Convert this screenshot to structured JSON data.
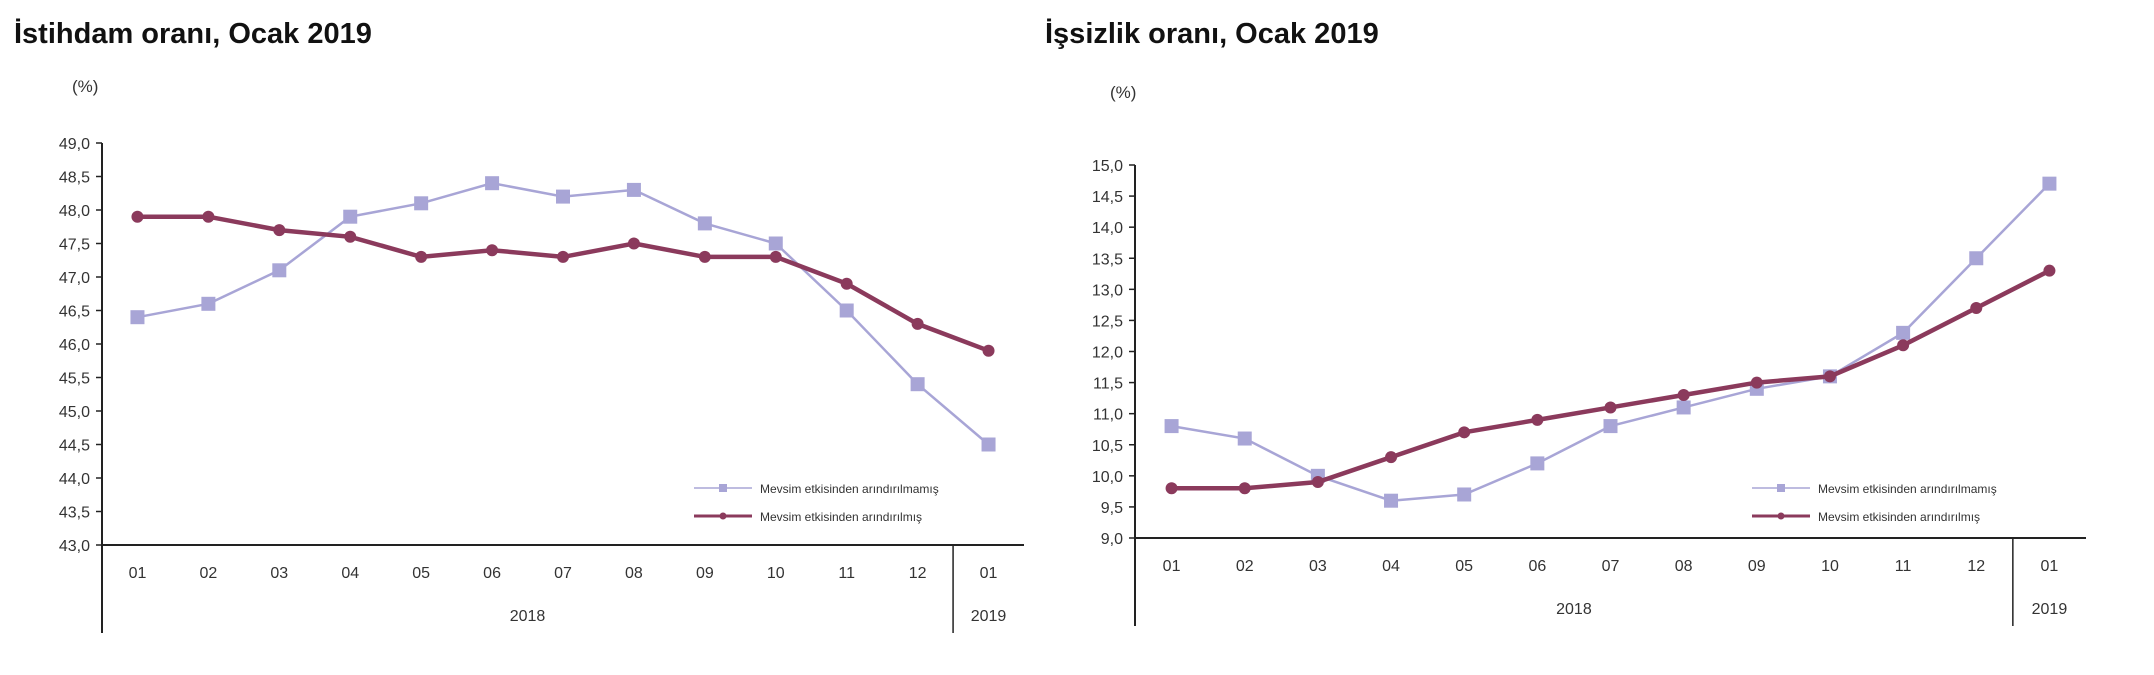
{
  "colors": {
    "seasonal_adjusted": "#8b3a5c",
    "not_adjusted": "#a8a5d6",
    "axis": "#222222"
  },
  "chart_data": [
    {
      "type": "line",
      "title": "İstihdam oranı, Ocak 2019",
      "ylabel": "(%)",
      "ylim": [
        43.0,
        49.0
      ],
      "y_ticks": [
        "49,0",
        "48,5",
        "48,0",
        "47,5",
        "47,0",
        "46,5",
        "46,0",
        "45,5",
        "45,0",
        "44,5",
        "44,0",
        "43,5",
        "43,0"
      ],
      "x": [
        "01",
        "02",
        "03",
        "04",
        "05",
        "06",
        "07",
        "08",
        "09",
        "10",
        "11",
        "12",
        "01"
      ],
      "year_labels": [
        "2018",
        "2019"
      ],
      "grid": false,
      "legend_position": "bottom-right",
      "series": [
        {
          "name": "Mevsim etkisinden arındırılmamış",
          "marker": "square",
          "color": "#a8a5d6",
          "values": [
            46.4,
            46.6,
            47.1,
            47.9,
            48.1,
            48.4,
            48.2,
            48.3,
            47.8,
            47.5,
            46.5,
            45.4,
            44.5
          ]
        },
        {
          "name": "Mevsim etkisinden arındırılmış",
          "marker": "circle",
          "color": "#8b3a5c",
          "values": [
            47.9,
            47.9,
            47.7,
            47.6,
            47.3,
            47.4,
            47.3,
            47.5,
            47.3,
            47.3,
            46.9,
            46.3,
            45.9
          ]
        }
      ]
    },
    {
      "type": "line",
      "title": "İşsizlik oranı, Ocak 2019",
      "ylabel": "(%)",
      "ylim": [
        9.0,
        15.0
      ],
      "y_ticks": [
        "15,0",
        "14,5",
        "14,0",
        "13,5",
        "13,0",
        "12,5",
        "12,0",
        "11,5",
        "11,0",
        "10,5",
        "10,0",
        "9,5",
        "9,0"
      ],
      "x": [
        "01",
        "02",
        "03",
        "04",
        "05",
        "06",
        "07",
        "08",
        "09",
        "10",
        "11",
        "12",
        "01"
      ],
      "year_labels": [
        "2018",
        "2019"
      ],
      "grid": false,
      "legend_position": "bottom-right",
      "series": [
        {
          "name": "Mevsim etkisinden arındırılmamış",
          "marker": "square",
          "color": "#a8a5d6",
          "values": [
            10.8,
            10.6,
            10.0,
            9.6,
            9.7,
            10.2,
            10.8,
            11.1,
            11.4,
            11.6,
            12.3,
            13.5,
            14.7
          ]
        },
        {
          "name": "Mevsim etkisinden arındırılmış",
          "marker": "circle",
          "color": "#8b3a5c",
          "values": [
            9.8,
            9.8,
            9.9,
            10.3,
            10.7,
            10.9,
            11.1,
            11.3,
            11.5,
            11.6,
            12.1,
            12.7,
            13.3
          ]
        }
      ]
    }
  ]
}
